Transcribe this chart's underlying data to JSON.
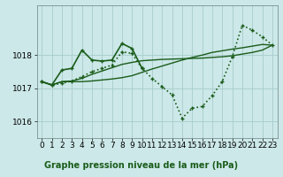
{
  "title": "Graphe pression niveau de la mer (hPa)",
  "bg_color": "#cce8e8",
  "plot_bg_color": "#cce8e8",
  "line_color": "#1a5c1a",
  "grid_color": "#a8cccc",
  "ylim": [
    1015.5,
    1019.5
  ],
  "xlim": [
    -0.5,
    23.5
  ],
  "yticks": [
    1016,
    1017,
    1018
  ],
  "xticks": [
    0,
    1,
    2,
    3,
    4,
    5,
    6,
    7,
    8,
    9,
    10,
    11,
    12,
    13,
    14,
    15,
    16,
    17,
    18,
    19,
    20,
    21,
    22,
    23
  ],
  "series": [
    {
      "x": [
        0,
        1,
        2,
        3,
        4,
        5,
        6,
        7,
        8,
        9,
        10,
        11,
        12,
        13,
        14,
        15,
        16,
        17,
        18,
        19,
        20,
        21,
        22,
        23
      ],
      "y": [
        1017.2,
        1017.1,
        1017.2,
        1017.2,
        1017.2,
        1017.22,
        1017.25,
        1017.28,
        1017.32,
        1017.38,
        1017.48,
        1017.58,
        1017.67,
        1017.76,
        1017.85,
        1017.93,
        1018.0,
        1018.08,
        1018.13,
        1018.18,
        1018.22,
        1018.27,
        1018.32,
        1018.3
      ],
      "marker": false,
      "lw": 1.0,
      "dotted": false
    },
    {
      "x": [
        0,
        1,
        2,
        3,
        4,
        5,
        6,
        7,
        8,
        9,
        10,
        11,
        12,
        13,
        14,
        15,
        16,
        17,
        18,
        19,
        20,
        21,
        22,
        23
      ],
      "y": [
        1017.2,
        1017.1,
        1017.2,
        1017.22,
        1017.3,
        1017.42,
        1017.52,
        1017.62,
        1017.72,
        1017.78,
        1017.83,
        1017.85,
        1017.87,
        1017.88,
        1017.89,
        1017.9,
        1017.91,
        1017.93,
        1017.95,
        1017.98,
        1018.03,
        1018.08,
        1018.15,
        1018.3
      ],
      "marker": false,
      "lw": 1.0,
      "dotted": false
    },
    {
      "x": [
        0,
        1,
        2,
        3,
        4,
        5,
        6,
        7,
        8,
        9,
        10,
        11,
        12,
        13,
        14,
        15,
        16,
        17,
        18,
        19,
        20,
        21,
        22,
        23
      ],
      "y": [
        1017.2,
        1017.1,
        1017.15,
        1017.22,
        1017.35,
        1017.5,
        1017.6,
        1017.7,
        1018.1,
        1018.05,
        1017.6,
        1017.3,
        1017.05,
        1016.8,
        1016.1,
        1016.4,
        1016.45,
        1016.78,
        1017.2,
        1017.95,
        1018.9,
        1018.75,
        1018.55,
        1018.3
      ],
      "marker": true,
      "lw": 1.2,
      "dotted": true
    },
    {
      "x": [
        0,
        1,
        2,
        3,
        4,
        5,
        6,
        7,
        8,
        9,
        10
      ],
      "y": [
        1017.2,
        1017.1,
        1017.55,
        1017.6,
        1018.15,
        1017.85,
        1017.82,
        1017.85,
        1018.35,
        1018.2,
        1017.6
      ],
      "marker": true,
      "lw": 1.2,
      "dotted": false
    }
  ],
  "marker_size": 3.5,
  "font_size_label": 7,
  "font_size_tick": 6.5
}
